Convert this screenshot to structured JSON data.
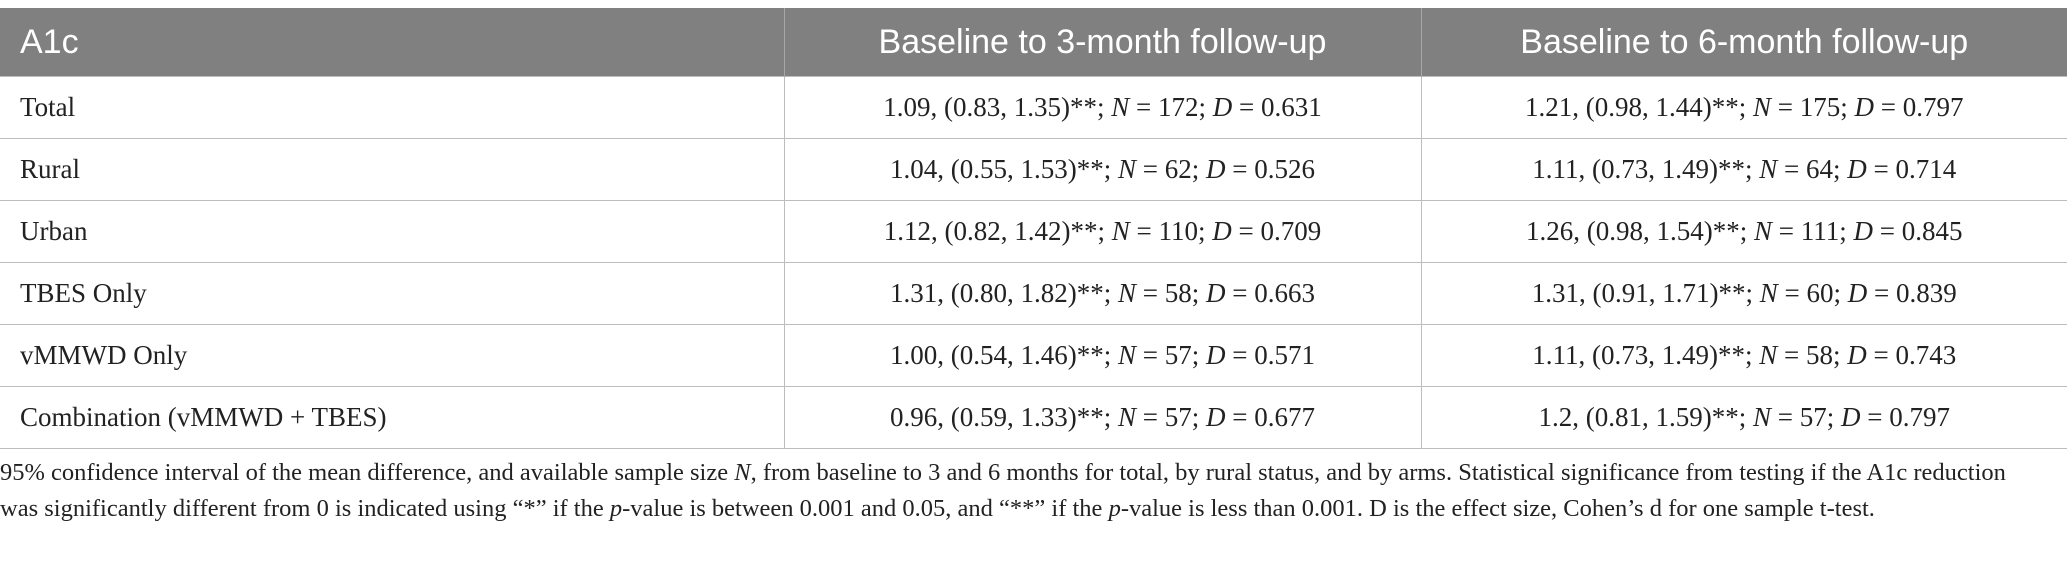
{
  "table": {
    "headers": [
      "A1c",
      "Baseline to 3-month follow-up",
      "Baseline to 6-month follow-up"
    ],
    "rows": [
      {
        "label": "Total",
        "m3": {
          "est": "1.09, (0.83, 1.35)**;",
          "n": "172;",
          "d": "0.631"
        },
        "m6": {
          "est": "1.21, (0.98, 1.44)**;",
          "n": "175;",
          "d": "0.797"
        }
      },
      {
        "label": "Rural",
        "m3": {
          "est": "1.04, (0.55, 1.53)**;",
          "n": "62;",
          "d": "0.526"
        },
        "m6": {
          "est": "1.11, (0.73, 1.49)**;",
          "n": "64;",
          "d": "0.714"
        }
      },
      {
        "label": "Urban",
        "m3": {
          "est": "1.12, (0.82, 1.42)**;",
          "n": "110;",
          "d": "0.709"
        },
        "m6": {
          "est": "1.26, (0.98, 1.54)**;",
          "n": "111;",
          "d": "0.845"
        }
      },
      {
        "label": "TBES Only",
        "m3": {
          "est": "1.31, (0.80, 1.82)**;",
          "n": "58;",
          "d": "0.663"
        },
        "m6": {
          "est": "1.31, (0.91, 1.71)**;",
          "n": "60;",
          "d": "0.839"
        }
      },
      {
        "label": "vMMWD Only",
        "m3": {
          "est": "1.00, (0.54, 1.46)**;",
          "n": "57;",
          "d": "0.571"
        },
        "m6": {
          "est": "1.11, (0.73, 1.49)**;",
          "n": "58;",
          "d": "0.743"
        }
      },
      {
        "label": "Combination (vMMWD + TBES)",
        "m3": {
          "est": "0.96, (0.59, 1.33)**;",
          "n": "57;",
          "d": "0.677"
        },
        "m6": {
          "est": "1.2, (0.81, 1.59)**;",
          "n": "57;",
          "d": "0.797"
        }
      }
    ],
    "n_symbol": "N",
    "d_symbol": "D",
    "equals": " = "
  },
  "footnote": {
    "part1": "95% confidence interval of the mean difference, and available sample size ",
    "n_symbol": "N",
    "part2": ", from baseline to 3 and 6 months for total, by rural status, and by arms. Statistical significance from testing if the A1c reduction was significantly different from 0 is indicated using “*” if the ",
    "p1": "p",
    "part3": "-value is between 0.001 and 0.05, and “**” if the ",
    "p2": "p",
    "part4": "-value is less than 0.001. D is the effect size, Cohen’s d for one sample t-test."
  }
}
